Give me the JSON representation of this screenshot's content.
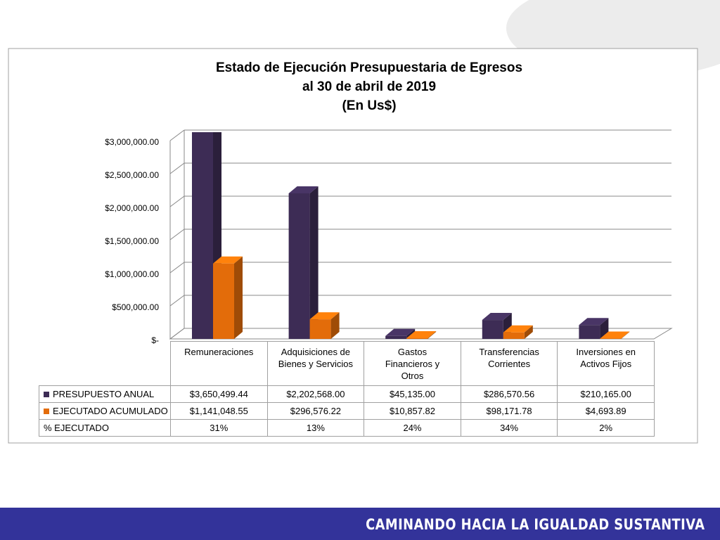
{
  "chart_data": {
    "type": "bar3d",
    "title": "Estado de Ejecución Presupuestaria de Egresos",
    "subtitle": "al 30 de abril de 2019",
    "unit_note": "(En Us$)",
    "categories": [
      "Remuneraciones",
      "Adquisiciones de Bienes y Servicios",
      "Gastos Financieros y Otros",
      "Transferencias Corrientes",
      "Inversiones en Activos Fijos"
    ],
    "series": [
      {
        "name": "PRESUPUESTO ANUAL",
        "color": "#3d2c55",
        "values": [
          3650499.44,
          2202568.0,
          45135.0,
          286570.56,
          210165.0
        ],
        "value_labels": [
          "$3,650,499.44",
          "$2,202,568.00",
          "$45,135.00",
          "$286,570.56",
          "$210,165.00"
        ]
      },
      {
        "name": "EJECUTADO ACUMULADO",
        "color": "#e36c0a",
        "values": [
          1141048.55,
          296576.22,
          10857.82,
          98171.78,
          4693.89
        ],
        "value_labels": [
          "$1,141,048.55",
          "$296,576.22",
          "$10,857.82",
          "$98,171.78",
          "$4,693.89"
        ]
      }
    ],
    "percent_row": {
      "name": "% EJECUTADO",
      "values": [
        31,
        13,
        24,
        34,
        2
      ],
      "value_labels": [
        "31%",
        "13%",
        "24%",
        "34%",
        "2%"
      ]
    },
    "ylim": [
      0,
      3000000
    ],
    "yticks": [
      {
        "value": 0,
        "label": "$-"
      },
      {
        "value": 500000,
        "label": "$500,000.00"
      },
      {
        "value": 1000000,
        "label": "$1,000,000.00"
      },
      {
        "value": 1500000,
        "label": "$1,500,000.00"
      },
      {
        "value": 2000000,
        "label": "$2,000,000.00"
      },
      {
        "value": 2500000,
        "label": "$2,500,000.00"
      },
      {
        "value": 3000000,
        "label": "$3,000,000.00"
      }
    ],
    "grid": true
  },
  "footer": {
    "text": "CAMINANDO HACIA LA IGUALDAD SUSTANTIVA"
  }
}
